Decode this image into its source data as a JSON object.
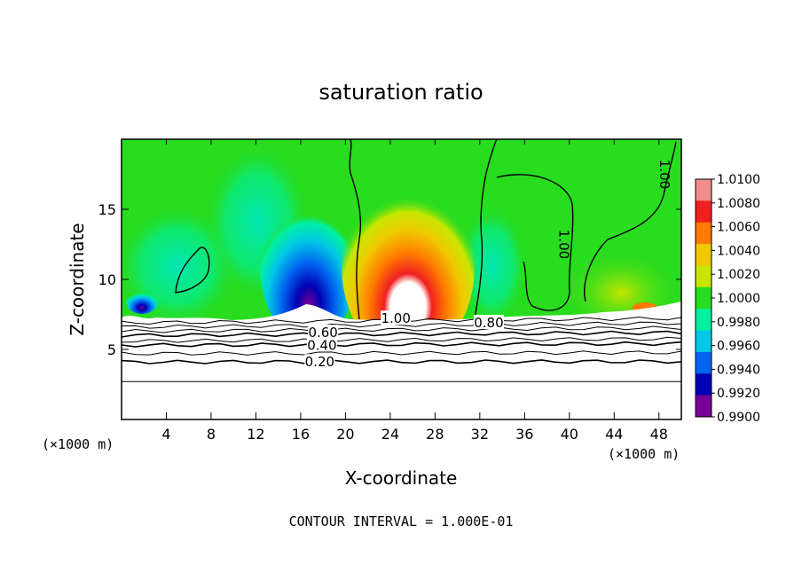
{
  "chart_data": {
    "type": "heatmap",
    "title": "saturation ratio",
    "xlabel": "X-coordinate",
    "ylabel": "Z-coordinate",
    "x_unit_left": "(×1000 m)",
    "x_unit_right": "(×1000 m)",
    "footer": "CONTOUR INTERVAL = 1.000E-01",
    "xlim": [
      0,
      50
    ],
    "ylim": [
      0,
      20
    ],
    "x_ticks": [
      4,
      8,
      12,
      16,
      20,
      24,
      28,
      32,
      36,
      40,
      44,
      48
    ],
    "x_tick_labels": [
      "4",
      "8",
      "12",
      "16",
      "20",
      "24",
      "28",
      "32",
      "36",
      "40",
      "44",
      "48"
    ],
    "y_ticks": [
      5,
      10,
      15
    ],
    "y_tick_labels": [
      "5",
      "10",
      "15"
    ],
    "colorbar": {
      "labels": [
        "1.0100",
        "1.0080",
        "1.0060",
        "1.0040",
        "1.0020",
        "1.0000",
        "0.9980",
        "0.9960",
        "0.9940",
        "0.9920",
        "0.9900"
      ],
      "colors": [
        "#f08c8c",
        "#f02020",
        "#ff7a00",
        "#f0c800",
        "#c8e600",
        "#28dc1e",
        "#00f0a0",
        "#00c8e6",
        "#0064f0",
        "#0000b4",
        "#780096"
      ]
    },
    "contour_labels": [
      {
        "text": "1.00",
        "x": 24.5,
        "z": 7.2
      },
      {
        "text": "0.80",
        "x": 32.8,
        "z": 6.9
      },
      {
        "text": "0.60",
        "x": 18.0,
        "z": 6.2
      },
      {
        "text": "0.40",
        "x": 17.9,
        "z": 5.3
      },
      {
        "text": "0.20",
        "x": 17.7,
        "z": 4.1
      },
      {
        "text": "1.00",
        "x": 39.5,
        "z": 12.5
      },
      {
        "text": "1.00",
        "x": 48.5,
        "z": 17.5
      }
    ],
    "colors": {
      "background_field": "#28dc1e",
      "below_cloud_base": "#ffffff",
      "contour_line": "#000000"
    }
  }
}
